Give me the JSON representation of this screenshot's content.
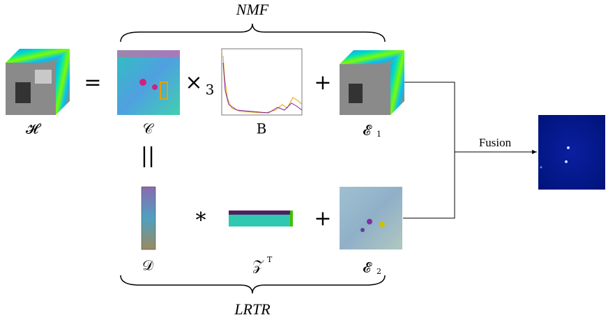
{
  "top_label": "NMF",
  "bottom_label": "LRTR",
  "operators": {
    "equals": "=",
    "times": "×",
    "mode": "3",
    "plus_top": "+",
    "parallel": "||",
    "convolution": "*",
    "plus_bottom": "+"
  },
  "nodes": [
    {
      "symbol": "𝓗"
    },
    {
      "symbol": "𝒞"
    },
    {
      "symbol": "B"
    },
    {
      "symbol": "𝓔",
      "subscript": "1"
    },
    {
      "symbol": "𝒟"
    },
    {
      "symbol": "𝒵",
      "superscript": "T"
    },
    {
      "symbol": "𝓔",
      "subscript": "2"
    }
  ],
  "edge_label": "Fusion"
}
